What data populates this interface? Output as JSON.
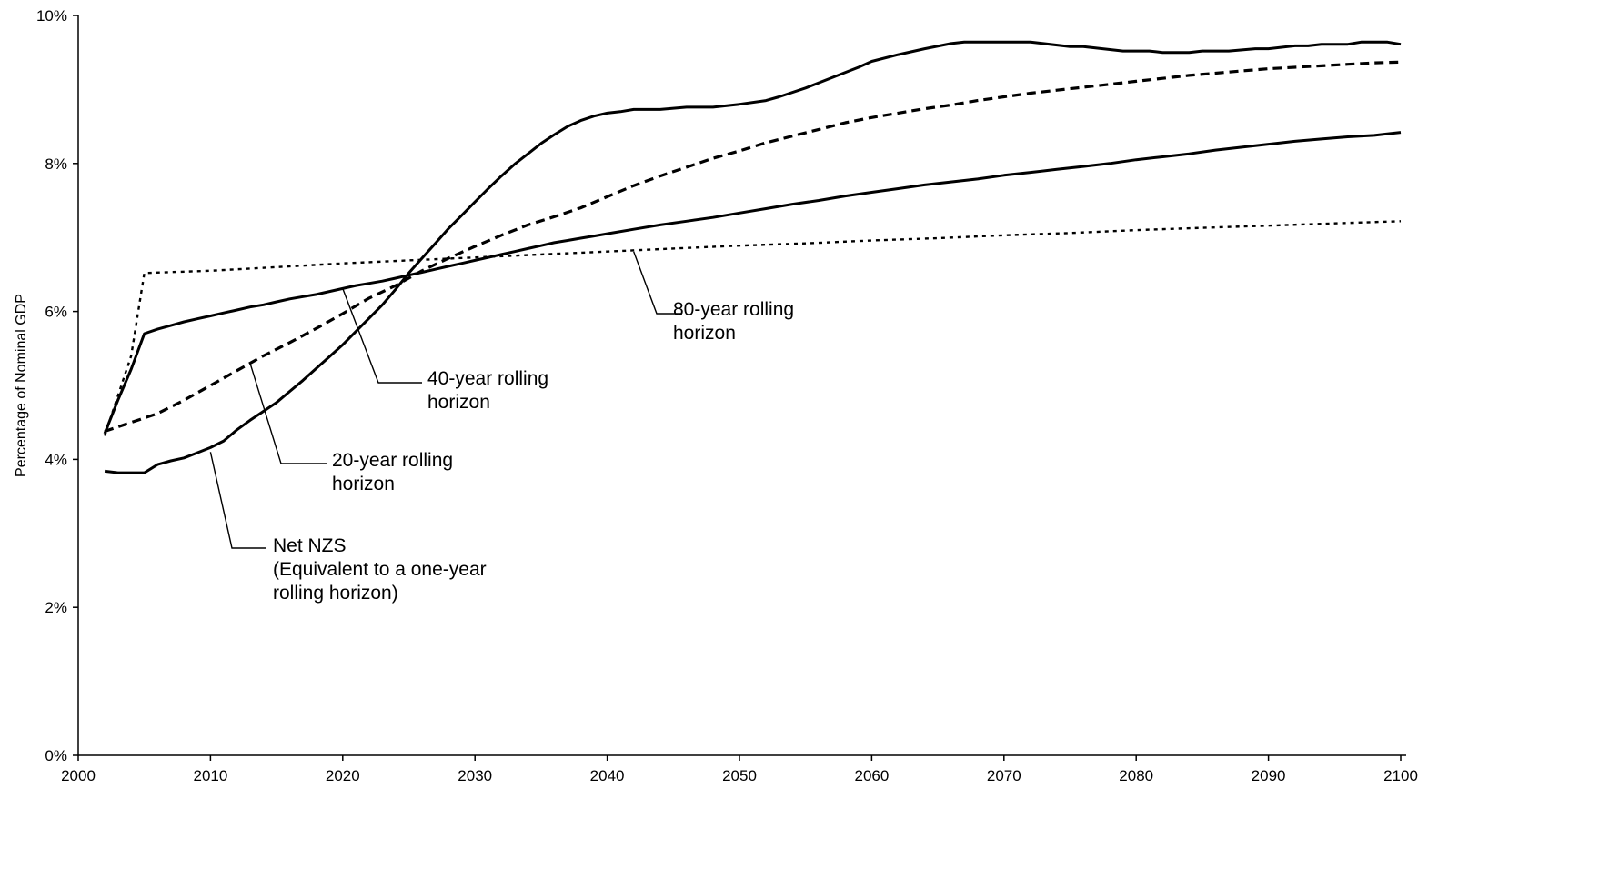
{
  "chart_data": {
    "type": "line",
    "title": "",
    "xlabel": "",
    "ylabel": "Percentage of Nominal GDP",
    "xlim": [
      2000,
      2100
    ],
    "ylim": [
      0,
      10
    ],
    "grid": false,
    "legend": "none",
    "x_ticks": [
      2000,
      2010,
      2020,
      2030,
      2040,
      2050,
      2060,
      2070,
      2080,
      2090,
      2100
    ],
    "x_tick_labels": [
      "2000",
      "2010",
      "2020",
      "2030",
      "2040",
      "2050",
      "2060",
      "2070",
      "2080",
      "2090",
      "2100"
    ],
    "y_ticks": [
      0,
      2,
      4,
      6,
      8,
      10
    ],
    "y_tick_labels": [
      "0%",
      "2%",
      "4%",
      "6%",
      "8%",
      "10%"
    ],
    "series": [
      {
        "id": "netnzs",
        "style": "solid",
        "points": [
          [
            2002,
            3.84
          ],
          [
            2003,
            3.82
          ],
          [
            2004,
            3.82
          ],
          [
            2005,
            3.82
          ],
          [
            2006,
            3.93
          ],
          [
            2007,
            3.98
          ],
          [
            2008,
            4.02
          ],
          [
            2009,
            4.09
          ],
          [
            2010,
            4.16
          ],
          [
            2011,
            4.25
          ],
          [
            2012,
            4.4
          ],
          [
            2013,
            4.53
          ],
          [
            2014,
            4.65
          ],
          [
            2015,
            4.77
          ],
          [
            2016,
            4.92
          ],
          [
            2017,
            5.07
          ],
          [
            2018,
            5.23
          ],
          [
            2019,
            5.39
          ],
          [
            2020,
            5.55
          ],
          [
            2021,
            5.73
          ],
          [
            2022,
            5.91
          ],
          [
            2023,
            6.09
          ],
          [
            2024,
            6.3
          ],
          [
            2025,
            6.52
          ],
          [
            2026,
            6.72
          ],
          [
            2027,
            6.92
          ],
          [
            2028,
            7.12
          ],
          [
            2029,
            7.3
          ],
          [
            2030,
            7.48
          ],
          [
            2031,
            7.66
          ],
          [
            2032,
            7.83
          ],
          [
            2033,
            7.99
          ],
          [
            2034,
            8.13
          ],
          [
            2035,
            8.27
          ],
          [
            2036,
            8.39
          ],
          [
            2037,
            8.5
          ],
          [
            2038,
            8.58
          ],
          [
            2039,
            8.64
          ],
          [
            2040,
            8.68
          ],
          [
            2041,
            8.7
          ],
          [
            2042,
            8.73
          ],
          [
            2044,
            8.73
          ],
          [
            2046,
            8.76
          ],
          [
            2048,
            8.76
          ],
          [
            2050,
            8.8
          ],
          [
            2052,
            8.85
          ],
          [
            2053,
            8.9
          ],
          [
            2055,
            9.02
          ],
          [
            2057,
            9.16
          ],
          [
            2059,
            9.3
          ],
          [
            2060,
            9.38
          ],
          [
            2062,
            9.47
          ],
          [
            2064,
            9.55
          ],
          [
            2066,
            9.62
          ],
          [
            2067,
            9.64
          ],
          [
            2072,
            9.64
          ],
          [
            2075,
            9.58
          ],
          [
            2076,
            9.58
          ],
          [
            2079,
            9.52
          ],
          [
            2081,
            9.52
          ],
          [
            2082,
            9.5
          ],
          [
            2084,
            9.5
          ],
          [
            2085,
            9.52
          ],
          [
            2087,
            9.52
          ],
          [
            2089,
            9.55
          ],
          [
            2090,
            9.55
          ],
          [
            2092,
            9.59
          ],
          [
            2093,
            9.59
          ],
          [
            2094,
            9.61
          ],
          [
            2096,
            9.61
          ],
          [
            2097,
            9.64
          ],
          [
            2099,
            9.64
          ],
          [
            2100,
            9.61
          ]
        ]
      },
      {
        "id": "h20",
        "style": "dashed-thick",
        "points": [
          [
            2002,
            4.38
          ],
          [
            2004,
            4.5
          ],
          [
            2006,
            4.62
          ],
          [
            2008,
            4.8
          ],
          [
            2010,
            5.0
          ],
          [
            2012,
            5.2
          ],
          [
            2014,
            5.4
          ],
          [
            2016,
            5.58
          ],
          [
            2018,
            5.77
          ],
          [
            2020,
            5.97
          ],
          [
            2022,
            6.18
          ],
          [
            2024,
            6.35
          ],
          [
            2026,
            6.55
          ],
          [
            2028,
            6.72
          ],
          [
            2030,
            6.88
          ],
          [
            2032,
            7.03
          ],
          [
            2034,
            7.17
          ],
          [
            2036,
            7.28
          ],
          [
            2038,
            7.4
          ],
          [
            2040,
            7.55
          ],
          [
            2042,
            7.7
          ],
          [
            2044,
            7.83
          ],
          [
            2046,
            7.95
          ],
          [
            2048,
            8.07
          ],
          [
            2050,
            8.17
          ],
          [
            2052,
            8.28
          ],
          [
            2054,
            8.37
          ],
          [
            2056,
            8.46
          ],
          [
            2058,
            8.55
          ],
          [
            2060,
            8.62
          ],
          [
            2062,
            8.68
          ],
          [
            2064,
            8.74
          ],
          [
            2066,
            8.79
          ],
          [
            2068,
            8.85
          ],
          [
            2070,
            8.9
          ],
          [
            2072,
            8.95
          ],
          [
            2074,
            8.99
          ],
          [
            2076,
            9.03
          ],
          [
            2078,
            9.07
          ],
          [
            2080,
            9.11
          ],
          [
            2082,
            9.15
          ],
          [
            2084,
            9.19
          ],
          [
            2086,
            9.22
          ],
          [
            2088,
            9.25
          ],
          [
            2090,
            9.28
          ],
          [
            2092,
            9.3
          ],
          [
            2094,
            9.32
          ],
          [
            2096,
            9.34
          ],
          [
            2098,
            9.36
          ],
          [
            2100,
            9.37
          ]
        ]
      },
      {
        "id": "h40",
        "style": "solid",
        "points": [
          [
            2002,
            4.35
          ],
          [
            2003,
            4.8
          ],
          [
            2004,
            5.22
          ],
          [
            2005,
            5.7
          ],
          [
            2006,
            5.76
          ],
          [
            2007,
            5.81
          ],
          [
            2008,
            5.86
          ],
          [
            2009,
            5.9
          ],
          [
            2010,
            5.94
          ],
          [
            2011,
            5.98
          ],
          [
            2012,
            6.02
          ],
          [
            2013,
            6.06
          ],
          [
            2014,
            6.09
          ],
          [
            2015,
            6.13
          ],
          [
            2016,
            6.17
          ],
          [
            2017,
            6.2
          ],
          [
            2018,
            6.23
          ],
          [
            2019,
            6.27
          ],
          [
            2020,
            6.31
          ],
          [
            2021,
            6.35
          ],
          [
            2022,
            6.38
          ],
          [
            2023,
            6.41
          ],
          [
            2024,
            6.45
          ],
          [
            2025,
            6.49
          ],
          [
            2026,
            6.53
          ],
          [
            2027,
            6.57
          ],
          [
            2028,
            6.61
          ],
          [
            2029,
            6.65
          ],
          [
            2030,
            6.69
          ],
          [
            2031,
            6.73
          ],
          [
            2032,
            6.77
          ],
          [
            2033,
            6.81
          ],
          [
            2034,
            6.85
          ],
          [
            2035,
            6.89
          ],
          [
            2036,
            6.93
          ],
          [
            2037,
            6.96
          ],
          [
            2038,
            6.99
          ],
          [
            2039,
            7.02
          ],
          [
            2040,
            7.05
          ],
          [
            2042,
            7.11
          ],
          [
            2044,
            7.17
          ],
          [
            2046,
            7.22
          ],
          [
            2048,
            7.27
          ],
          [
            2050,
            7.33
          ],
          [
            2052,
            7.39
          ],
          [
            2054,
            7.45
          ],
          [
            2056,
            7.5
          ],
          [
            2058,
            7.56
          ],
          [
            2060,
            7.61
          ],
          [
            2062,
            7.66
          ],
          [
            2064,
            7.71
          ],
          [
            2066,
            7.75
          ],
          [
            2068,
            7.79
          ],
          [
            2070,
            7.84
          ],
          [
            2072,
            7.88
          ],
          [
            2074,
            7.92
          ],
          [
            2076,
            7.96
          ],
          [
            2078,
            8.0
          ],
          [
            2080,
            8.05
          ],
          [
            2082,
            8.09
          ],
          [
            2084,
            8.13
          ],
          [
            2086,
            8.18
          ],
          [
            2088,
            8.22
          ],
          [
            2090,
            8.26
          ],
          [
            2092,
            8.3
          ],
          [
            2094,
            8.33
          ],
          [
            2096,
            8.36
          ],
          [
            2098,
            8.38
          ],
          [
            2100,
            8.42
          ]
        ]
      },
      {
        "id": "h80",
        "style": "dotted",
        "points": [
          [
            2002,
            4.32
          ],
          [
            2004,
            5.4
          ],
          [
            2005,
            6.52
          ],
          [
            2010,
            6.55
          ],
          [
            2015,
            6.6
          ],
          [
            2020,
            6.65
          ],
          [
            2025,
            6.69
          ],
          [
            2030,
            6.73
          ],
          [
            2035,
            6.77
          ],
          [
            2040,
            6.81
          ],
          [
            2045,
            6.85
          ],
          [
            2050,
            6.89
          ],
          [
            2055,
            6.92
          ],
          [
            2060,
            6.96
          ],
          [
            2065,
            6.99
          ],
          [
            2070,
            7.03
          ],
          [
            2075,
            7.06
          ],
          [
            2080,
            7.1
          ],
          [
            2085,
            7.13
          ],
          [
            2090,
            7.16
          ],
          [
            2095,
            7.19
          ],
          [
            2100,
            7.22
          ]
        ]
      }
    ],
    "annotations": [
      {
        "id": "ann-80",
        "lines": [
          "80-year rolling",
          "horizon"
        ],
        "target": [
          2042,
          6.81
        ]
      },
      {
        "id": "ann-40",
        "lines": [
          "40-year rolling",
          "horizon"
        ],
        "target": [
          2020,
          6.31
        ]
      },
      {
        "id": "ann-20",
        "lines": [
          "20-year rolling",
          "horizon"
        ],
        "target": [
          2013,
          5.3
        ]
      },
      {
        "id": "ann-nzs",
        "lines": [
          "Net NZS",
          "(Equivalent to a one-year",
          "rolling horizon)"
        ],
        "target": [
          2010,
          4.1
        ]
      }
    ]
  }
}
